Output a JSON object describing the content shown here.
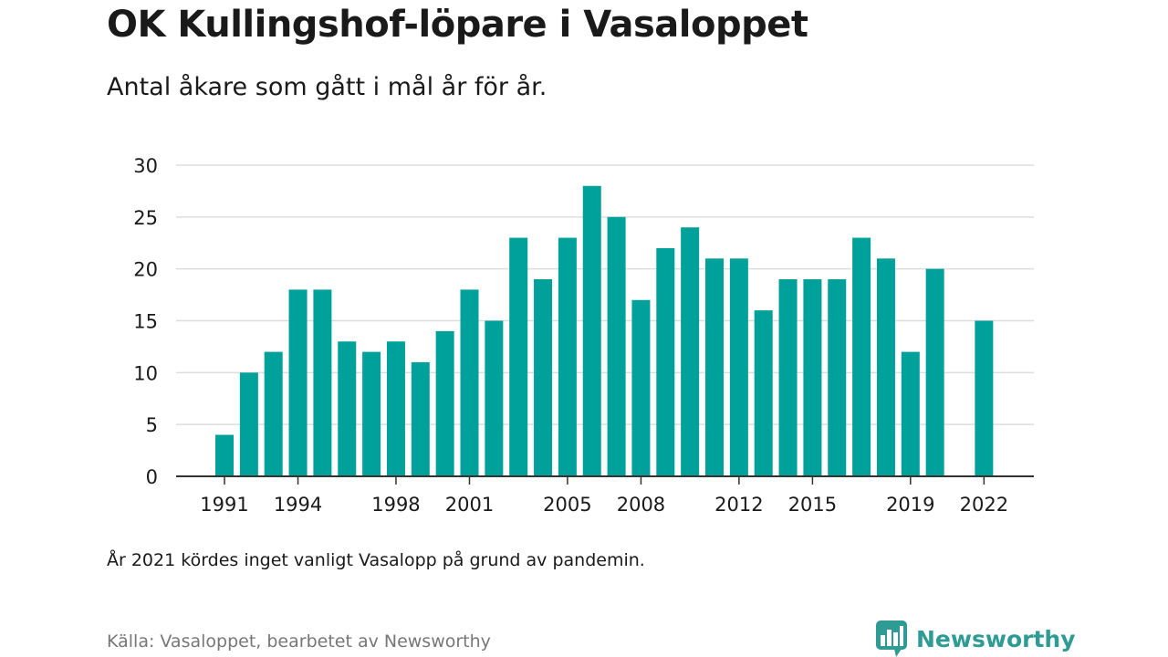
{
  "header": {
    "title": "OK Kullingshof-löpare i Vasaloppet",
    "subtitle": "Antal åkare som gått i mål år för år."
  },
  "footer": {
    "note": "År 2021 kördes inget vanligt Vasalopp på grund av pandemin.",
    "source": "Källa: Vasaloppet, bearbetet av Newsworthy",
    "brand": "Newsworthy"
  },
  "colors": {
    "bar": "#00a19a",
    "grid": "#dddddd",
    "axis": "#333333",
    "brand": "#2e9b94"
  },
  "icons": {
    "brand_logo": "bar-chart-speech-bubble-icon"
  },
  "chart_data": {
    "type": "bar",
    "title": "OK Kullingshof-löpare i Vasaloppet",
    "subtitle": "Antal åkare som gått i mål år för år.",
    "x": [
      1991,
      1992,
      1993,
      1994,
      1995,
      1996,
      1997,
      1998,
      1999,
      2000,
      2001,
      2002,
      2003,
      2004,
      2005,
      2006,
      2007,
      2008,
      2009,
      2010,
      2011,
      2012,
      2013,
      2014,
      2015,
      2016,
      2017,
      2018,
      2019,
      2020,
      2021,
      2022
    ],
    "values": [
      4,
      10,
      12,
      18,
      18,
      13,
      12,
      13,
      11,
      14,
      18,
      15,
      23,
      19,
      23,
      28,
      25,
      17,
      22,
      24,
      21,
      21,
      16,
      19,
      19,
      19,
      23,
      21,
      12,
      20,
      null,
      15
    ],
    "xticks": [
      "1991",
      "1994",
      "1998",
      "2001",
      "2005",
      "2008",
      "2012",
      "2015",
      "2019",
      "2022"
    ],
    "yticks": [
      "0",
      "5",
      "10",
      "15",
      "20",
      "25",
      "30"
    ],
    "ylim": [
      0,
      30
    ],
    "grid": true,
    "legend": "none"
  }
}
